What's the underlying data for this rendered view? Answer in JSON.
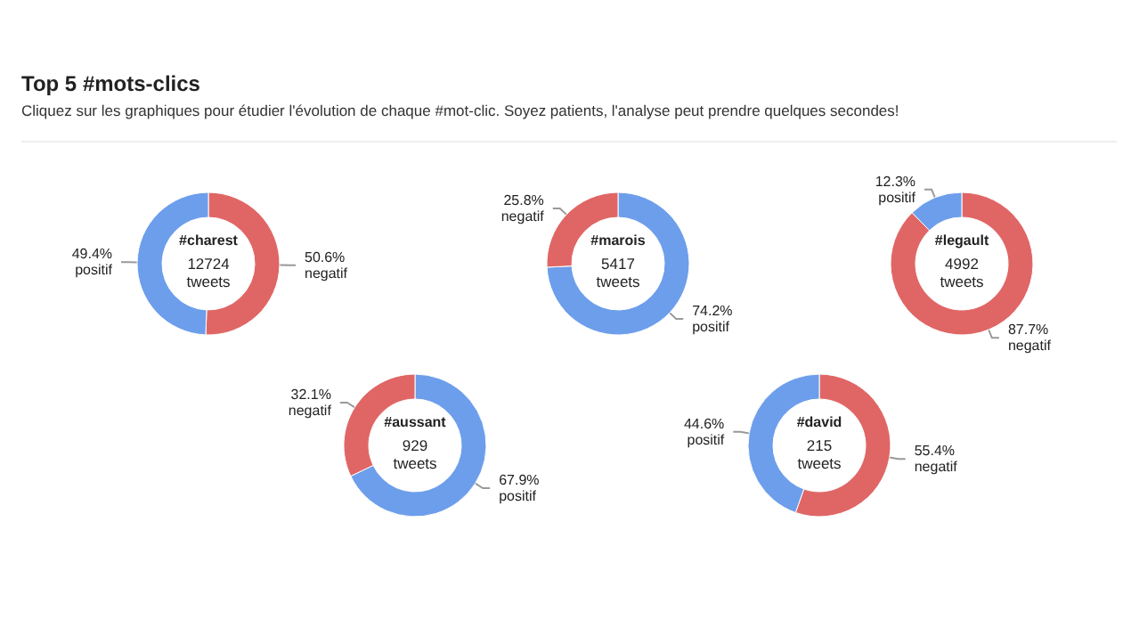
{
  "chart_data": [
    {
      "type": "other",
      "title": "Top 5 #mots-clics",
      "subtitle": "Cliquez sur les graphiques pour étudier l'évolution de chaque #mot-clic. Soyez patients, l'analyse peut prendre quelques secondes!"
    },
    {
      "type": "donut",
      "title": "#charest",
      "subtitle": "12724 tweets",
      "categories": [
        "negatif",
        "positif"
      ],
      "values": [
        50.6,
        49.4
      ],
      "colors": [
        "#e06666",
        "#6d9eeb"
      ],
      "value_labels": [
        "50.6%",
        "49.4%"
      ]
    },
    {
      "type": "donut",
      "title": "#marois",
      "subtitle": "5417 tweets",
      "categories": [
        "positif",
        "negatif"
      ],
      "values": [
        74.2,
        25.8
      ],
      "colors": [
        "#6d9eeb",
        "#e06666"
      ],
      "value_labels": [
        "74.2%",
        "25.8%"
      ]
    },
    {
      "type": "donut",
      "title": "#legault",
      "subtitle": "4992 tweets",
      "categories": [
        "negatif",
        "positif"
      ],
      "values": [
        87.7,
        12.3
      ],
      "colors": [
        "#e06666",
        "#6d9eeb"
      ],
      "value_labels": [
        "87.7%",
        "12.3%"
      ]
    },
    {
      "type": "donut",
      "title": "#aussant",
      "subtitle": "929 tweets",
      "categories": [
        "positif",
        "negatif"
      ],
      "values": [
        67.9,
        32.1
      ],
      "colors": [
        "#6d9eeb",
        "#e06666"
      ],
      "value_labels": [
        "67.9%",
        "32.1%"
      ]
    },
    {
      "type": "donut",
      "title": "#david",
      "subtitle": "215 tweets",
      "categories": [
        "negatif",
        "positif"
      ],
      "values": [
        55.4,
        44.6
      ],
      "colors": [
        "#e06666",
        "#6d9eeb"
      ],
      "value_labels": [
        "55.4%",
        "44.6%"
      ]
    }
  ]
}
